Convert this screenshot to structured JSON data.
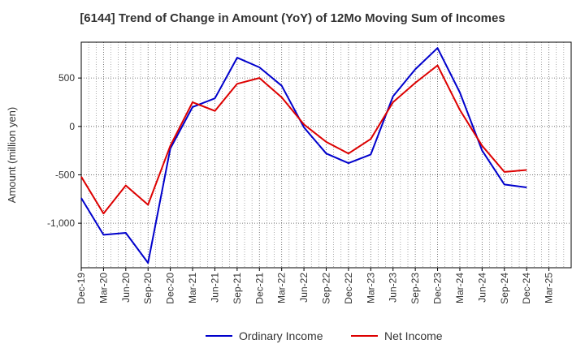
{
  "chart_data": {
    "type": "line",
    "title": "[6144]  Trend of Change in Amount (YoY) of 12Mo Moving Sum of Incomes",
    "xlabel": "",
    "ylabel": "Amount (million yen)",
    "x": [
      "Dec-19",
      "Mar-20",
      "Jun-20",
      "Sep-20",
      "Dec-20",
      "Mar-21",
      "Jun-21",
      "Sep-21",
      "Dec-21",
      "Mar-22",
      "Jun-22",
      "Sep-22",
      "Dec-22",
      "Mar-23",
      "Jun-23",
      "Sep-23",
      "Dec-23",
      "Mar-24",
      "Jun-24",
      "Sep-24",
      "Dec-24",
      "Mar-25"
    ],
    "ylim": [
      -1460,
      870
    ],
    "yticks": [
      500,
      0,
      -500,
      -1000
    ],
    "ytick_labels": [
      "500",
      "0",
      "-500",
      "-1,000"
    ],
    "grid": true,
    "legend_position": "bottom-center",
    "series": [
      {
        "name": "Ordinary Income",
        "color": "#0000cc",
        "values": [
          -740,
          -1120,
          -1100,
          -1410,
          -230,
          200,
          290,
          710,
          610,
          420,
          -10,
          -280,
          -380,
          -290,
          310,
          590,
          810,
          350,
          -250,
          -600,
          -630,
          null
        ]
      },
      {
        "name": "Net Income",
        "color": "#dd0000",
        "values": [
          -520,
          -900,
          -610,
          -810,
          -200,
          250,
          160,
          440,
          500,
          300,
          20,
          -160,
          -280,
          -130,
          250,
          450,
          630,
          170,
          -200,
          -470,
          -450,
          null
        ]
      }
    ]
  }
}
